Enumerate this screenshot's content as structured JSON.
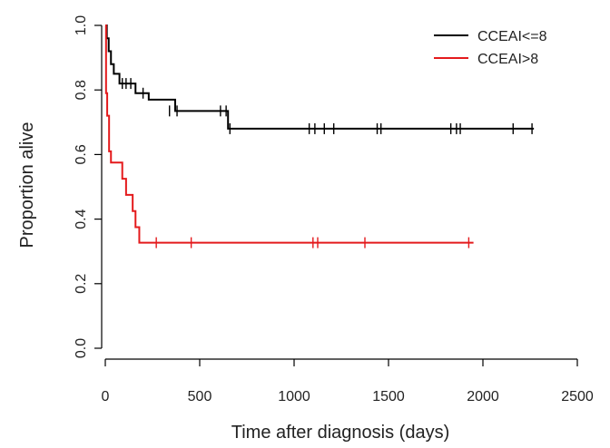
{
  "chart_data": {
    "type": "line",
    "title": "",
    "xlabel": "Time after diagnosis (days)",
    "ylabel": "Proportion alive",
    "xlim": [
      0,
      2500
    ],
    "ylim": [
      0,
      1
    ],
    "x_ticks": [
      0,
      500,
      1000,
      1500,
      2000,
      2500
    ],
    "y_ticks": [
      0.0,
      0.2,
      0.4,
      0.6,
      0.8,
      1.0
    ],
    "x_tick_labels": [
      "0",
      "500",
      "1000",
      "1500",
      "2000",
      "2500"
    ],
    "y_tick_labels": [
      "0.0",
      "0.2",
      "0.4",
      "0.6",
      "0.8",
      "1.0"
    ],
    "grid": false,
    "legend_position": "top-right",
    "series": [
      {
        "name": "CCEAI<=8",
        "color": "#000000",
        "steps": [
          [
            0,
            1.0
          ],
          [
            8,
            0.96
          ],
          [
            18,
            0.92
          ],
          [
            30,
            0.88
          ],
          [
            45,
            0.85
          ],
          [
            75,
            0.82
          ],
          [
            160,
            0.79
          ],
          [
            230,
            0.77
          ],
          [
            370,
            0.735
          ],
          [
            650,
            0.68
          ],
          [
            2270,
            0.68
          ]
        ],
        "censored": [
          [
            90,
            0.82
          ],
          [
            110,
            0.82
          ],
          [
            135,
            0.82
          ],
          [
            200,
            0.79
          ],
          [
            340,
            0.735
          ],
          [
            380,
            0.735
          ],
          [
            610,
            0.735
          ],
          [
            640,
            0.735
          ],
          [
            660,
            0.68
          ],
          [
            1080,
            0.68
          ],
          [
            1110,
            0.68
          ],
          [
            1160,
            0.68
          ],
          [
            1210,
            0.68
          ],
          [
            1440,
            0.68
          ],
          [
            1460,
            0.68
          ],
          [
            1830,
            0.68
          ],
          [
            1860,
            0.68
          ],
          [
            1880,
            0.68
          ],
          [
            2160,
            0.68
          ],
          [
            2260,
            0.68
          ]
        ]
      },
      {
        "name": "CCEAI>8",
        "color": "#e41a1c",
        "steps": [
          [
            0,
            1.0
          ],
          [
            4,
            0.79
          ],
          [
            10,
            0.72
          ],
          [
            20,
            0.61
          ],
          [
            30,
            0.575
          ],
          [
            90,
            0.525
          ],
          [
            110,
            0.475
          ],
          [
            145,
            0.425
          ],
          [
            160,
            0.375
          ],
          [
            180,
            0.327
          ],
          [
            1950,
            0.327
          ]
        ],
        "censored": [
          [
            270,
            0.327
          ],
          [
            455,
            0.327
          ],
          [
            1100,
            0.327
          ],
          [
            1125,
            0.327
          ],
          [
            1375,
            0.327
          ],
          [
            1925,
            0.327
          ]
        ]
      }
    ]
  }
}
